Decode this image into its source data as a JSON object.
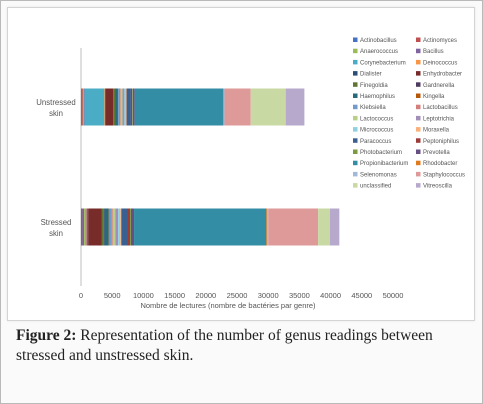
{
  "chart_data": {
    "type": "bar",
    "orientation": "horizontal",
    "stacked": true,
    "categories": [
      "Unstressed\nskin",
      "Stressed\nskin"
    ],
    "xlabel": "Nombre de lectures (nombre de bactéries par genre)",
    "ylabel": "",
    "xlim": [
      0,
      50000
    ],
    "xticks": [
      0,
      5000,
      10000,
      15000,
      20000,
      25000,
      30000,
      35000,
      40000,
      45000,
      50000
    ],
    "grid": false,
    "legend_position": "right",
    "series": [
      {
        "name": "Actinobacillus",
        "color": "#4472c4",
        "values": [
          150,
          250
        ]
      },
      {
        "name": "Actinomyces",
        "color": "#c0504d",
        "values": [
          150,
          250
        ]
      },
      {
        "name": "Anaerococcus",
        "color": "#9bbb59",
        "values": [
          150,
          250
        ]
      },
      {
        "name": "Bacillus",
        "color": "#8064a2",
        "values": [
          100,
          150
        ]
      },
      {
        "name": "Corynebacterium",
        "color": "#4bacc6",
        "values": [
          3200,
          0
        ]
      },
      {
        "name": "Deinococcus",
        "color": "#f79646",
        "values": [
          100,
          100
        ]
      },
      {
        "name": "Dialister",
        "color": "#2c4d75",
        "values": [
          100,
          150
        ]
      },
      {
        "name": "Enhydrobacter",
        "color": "#772c2a",
        "values": [
          1200,
          2200
        ]
      },
      {
        "name": "Finegoldia",
        "color": "#5f7530",
        "values": [
          300,
          300
        ]
      },
      {
        "name": "Gardnerella",
        "color": "#4d3b62",
        "values": [
          100,
          100
        ]
      },
      {
        "name": "Haemophilus",
        "color": "#276a7c",
        "values": [
          300,
          700
        ]
      },
      {
        "name": "Kingella",
        "color": "#b65708",
        "values": [
          100,
          100
        ]
      },
      {
        "name": "Klebsiella",
        "color": "#729aca",
        "values": [
          300,
          400
        ]
      },
      {
        "name": "Lactobacillus",
        "color": "#d47e7b",
        "values": [
          100,
          150
        ]
      },
      {
        "name": "Lactococcus",
        "color": "#b8cf86",
        "values": [
          300,
          400
        ]
      },
      {
        "name": "Leptotrichia",
        "color": "#a28fb9",
        "values": [
          300,
          450
        ]
      },
      {
        "name": "Micrococcus",
        "color": "#8ecfe0",
        "values": [
          250,
          350
        ]
      },
      {
        "name": "Moraxella",
        "color": "#f9b07a",
        "values": [
          100,
          150
        ]
      },
      {
        "name": "Paracoccus",
        "color": "#3a5f91",
        "values": [
          700,
          1000
        ]
      },
      {
        "name": "Peptoniphilus",
        "color": "#9e3b37",
        "values": [
          200,
          400
        ]
      },
      {
        "name": "Photobacterium",
        "color": "#7c9b40",
        "values": [
          100,
          150
        ]
      },
      {
        "name": "Prevotella",
        "color": "#674f83",
        "values": [
          300,
          500
        ]
      },
      {
        "name": "Propionibacterium",
        "color": "#338ea5",
        "values": [
          14200,
          21200
        ]
      },
      {
        "name": "Rhodobacter",
        "color": "#e07a1f",
        "values": [
          100,
          150
        ]
      },
      {
        "name": "Selenomonas",
        "color": "#a3b9da",
        "values": [
          100,
          150
        ]
      },
      {
        "name": "Staphylococcus",
        "color": "#dd9a98",
        "values": [
          4200,
          8000
        ]
      },
      {
        "name": "unclassified",
        "color": "#c8d9a4",
        "values": [
          5600,
          1900
        ]
      },
      {
        "name": "Vitreoscilla",
        "color": "#b7a9cc",
        "values": [
          3000,
          1500
        ]
      }
    ]
  },
  "caption": {
    "label": "Figure 2:",
    "text": "Representation of the number of genus readings between stressed and unstressed skin."
  }
}
